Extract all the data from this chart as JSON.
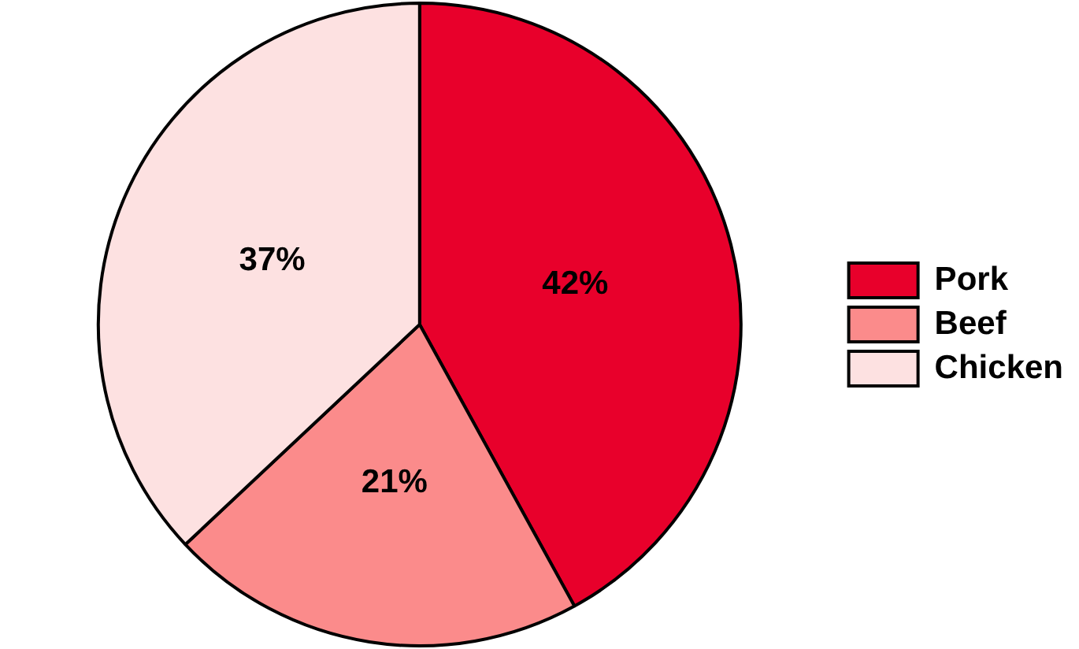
{
  "chart_data": {
    "type": "pie",
    "categories": [
      "Pork",
      "Beef",
      "Chicken"
    ],
    "values": [
      42,
      21,
      37
    ],
    "colors": [
      "#e8002b",
      "#fb8b8b",
      "#fde1e1"
    ],
    "value_labels": [
      "42%",
      "21%",
      "37%"
    ],
    "legend": "right"
  }
}
